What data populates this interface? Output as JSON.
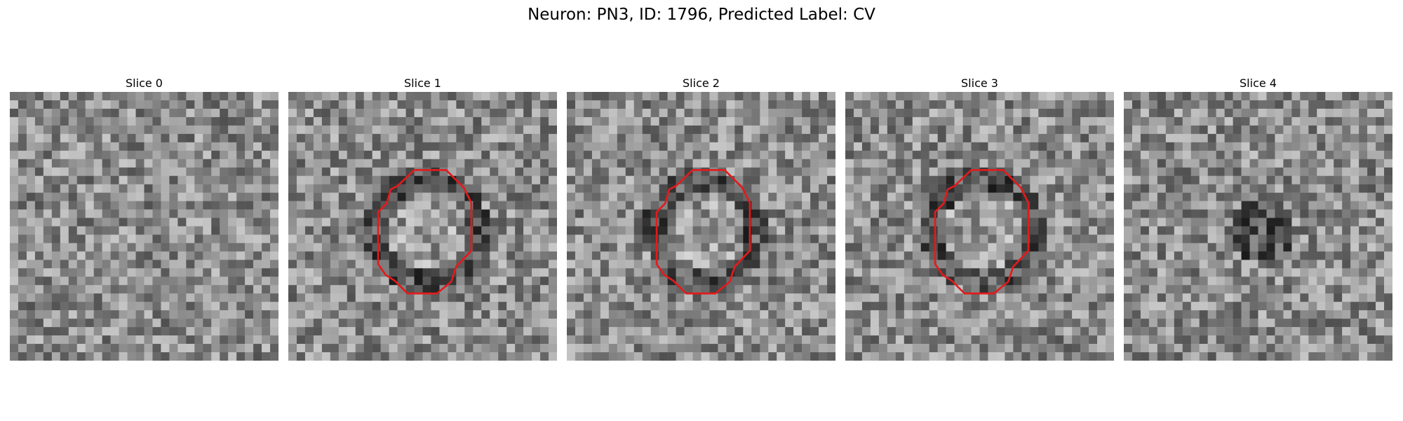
{
  "figure": {
    "title": "Neuron: PN3, ID: 1796, Predicted Label: CV"
  },
  "panels": [
    {
      "title": "Slice 0",
      "has_contour": false,
      "dark_center": false,
      "seed": 11
    },
    {
      "title": "Slice 1",
      "has_contour": true,
      "dark_center": false,
      "seed": 23
    },
    {
      "title": "Slice 2",
      "has_contour": true,
      "dark_center": false,
      "seed": 37
    },
    {
      "title": "Slice 3",
      "has_contour": true,
      "dark_center": false,
      "seed": 51
    },
    {
      "title": "Slice 4",
      "has_contour": false,
      "dark_center": true,
      "seed": 67
    }
  ],
  "colors": {
    "contour": "#e41a1c",
    "background": "#ffffff"
  },
  "icons": []
}
